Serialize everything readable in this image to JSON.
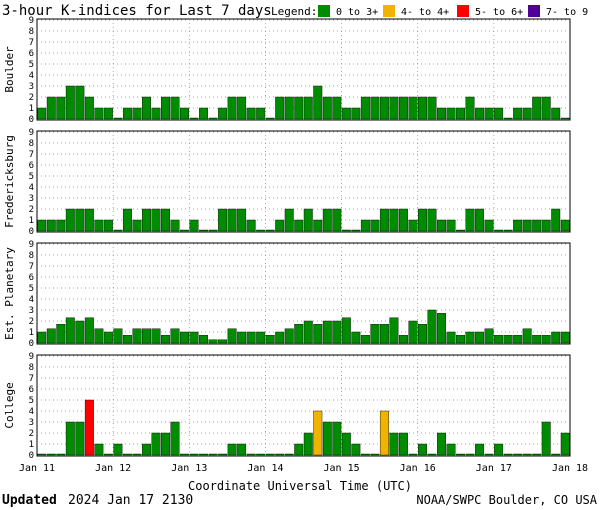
{
  "title": "3-hour K-indices for Last 7 days",
  "legend": {
    "label": "Legend:",
    "items": [
      {
        "label": "0 to 3+",
        "color": "#008c00"
      },
      {
        "label": "4- to 4+",
        "color": "#f0b400"
      },
      {
        "label": "5- to 6+",
        "color": "#ff0000"
      },
      {
        "label": "7- to 9",
        "color": "#500096"
      }
    ]
  },
  "xlabel": "Coordinate Universal Time (UTC)",
  "xticks": [
    "Jan 11",
    "Jan 12",
    "Jan 13",
    "Jan 14",
    "Jan 15",
    "Jan 16",
    "Jan 17",
    "Jan 18"
  ],
  "footer": {
    "updated_label": "Updated",
    "updated_time": "2024 Jan 17 2130",
    "source": "NOAA/SWPC Boulder, CO USA"
  },
  "chart_data": {
    "type": "bar",
    "title": "3-hour K-indices for Last 7 days",
    "xlabel": "Coordinate Universal Time (UTC)",
    "x_range": [
      "Jan 11",
      "Jan 18"
    ],
    "bins_per_day": 8,
    "ylim": [
      0,
      9
    ],
    "yticks": [
      0,
      1,
      2,
      3,
      4,
      5,
      6,
      7,
      8,
      9
    ],
    "grid": true,
    "legend_position": "top",
    "color_thresholds": [
      {
        "range": "0 to 3+",
        "color": "#008c00"
      },
      {
        "range": "4- to 4+",
        "color": "#f0b400"
      },
      {
        "range": "5- to 6+",
        "color": "#ff0000"
      },
      {
        "range": "7- to 9",
        "color": "#500096"
      }
    ],
    "panels": [
      {
        "name": "Boulder",
        "values": [
          1,
          2,
          2,
          3,
          3,
          2,
          1,
          1,
          0,
          1,
          1,
          2,
          1,
          2,
          2,
          1,
          0,
          1,
          0,
          1,
          2,
          2,
          1,
          1,
          0,
          2,
          2,
          2,
          2,
          3,
          2,
          2,
          1,
          1,
          2,
          2,
          2,
          2,
          2,
          2,
          2,
          2,
          1,
          1,
          1,
          2,
          1,
          1,
          1,
          0,
          1,
          1,
          2,
          2,
          1,
          0
        ]
      },
      {
        "name": "Fredericksburg",
        "values": [
          1,
          1,
          1,
          2,
          2,
          2,
          1,
          1,
          0,
          2,
          1,
          2,
          2,
          2,
          1,
          0,
          1,
          0,
          0,
          2,
          2,
          2,
          1,
          0,
          0,
          1,
          2,
          1,
          2,
          1,
          2,
          2,
          0,
          0,
          1,
          1,
          2,
          2,
          2,
          1,
          2,
          2,
          1,
          1,
          0,
          2,
          2,
          1,
          0,
          0,
          1,
          1,
          1,
          1,
          2,
          1
        ]
      },
      {
        "name": "Est. Planetary",
        "values": [
          1,
          1.3,
          1.7,
          2.3,
          2,
          2.3,
          1.3,
          1,
          1.3,
          0.7,
          1.3,
          1.3,
          1.3,
          0.7,
          1.3,
          1,
          1,
          0.7,
          0.3,
          0.3,
          1.3,
          1,
          1,
          1,
          0.7,
          1,
          1.3,
          1.7,
          2,
          1.7,
          2,
          2,
          2.3,
          1,
          0.7,
          1.7,
          1.7,
          2.3,
          0.7,
          2,
          1.7,
          3,
          2.7,
          1,
          0.7,
          1,
          1,
          1.3,
          0.7,
          0.7,
          0.7,
          1.3,
          0.7,
          0.7,
          1,
          1
        ]
      },
      {
        "name": "College",
        "values": [
          0,
          0,
          0,
          3,
          3,
          5,
          1,
          0,
          1,
          0,
          0,
          1,
          2,
          2,
          3,
          0,
          0,
          0,
          0,
          0,
          1,
          1,
          0,
          0,
          0,
          0,
          0,
          1,
          2,
          4,
          3,
          3,
          2,
          1,
          0,
          0,
          4,
          2,
          2,
          0,
          1,
          0,
          2,
          1,
          0,
          0,
          1,
          0,
          1,
          0,
          0,
          0,
          0,
          3,
          0,
          2
        ]
      }
    ]
  }
}
